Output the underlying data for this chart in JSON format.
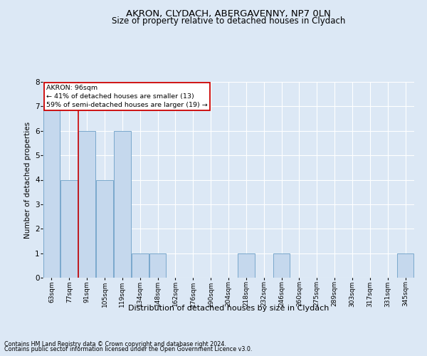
{
  "title_line1": "AKRON, CLYDACH, ABERGAVENNY, NP7 0LN",
  "title_line2": "Size of property relative to detached houses in Clydach",
  "xlabel": "Distribution of detached houses by size in Clydach",
  "ylabel": "Number of detached properties",
  "footer_line1": "Contains HM Land Registry data © Crown copyright and database right 2024.",
  "footer_line2": "Contains public sector information licensed under the Open Government Licence v3.0.",
  "annotation_title": "AKRON: 96sqm",
  "annotation_line1": "← 41% of detached houses are smaller (13)",
  "annotation_line2": "59% of semi-detached houses are larger (19) →",
  "categories": [
    "63sqm",
    "77sqm",
    "91sqm",
    "105sqm",
    "119sqm",
    "134sqm",
    "148sqm",
    "162sqm",
    "176sqm",
    "190sqm",
    "204sqm",
    "218sqm",
    "232sqm",
    "246sqm",
    "260sqm",
    "275sqm",
    "289sqm",
    "303sqm",
    "317sqm",
    "331sqm",
    "345sqm"
  ],
  "values": [
    7,
    4,
    6,
    4,
    6,
    1,
    1,
    0,
    0,
    0,
    0,
    1,
    0,
    1,
    0,
    0,
    0,
    0,
    0,
    0,
    1
  ],
  "bar_color": "#c5d8ed",
  "bar_edge_color": "#7aa8cc",
  "red_line_index": 2,
  "red_line_color": "#cc0000",
  "annotation_box_color": "#ffffff",
  "annotation_box_edge": "#cc0000",
  "ylim": [
    0,
    8
  ],
  "yticks": [
    0,
    1,
    2,
    3,
    4,
    5,
    6,
    7,
    8
  ],
  "background_color": "#dce8f5",
  "axes_background": "#dce8f5",
  "grid_color": "#ffffff",
  "title_fontsize": 9.5,
  "subtitle_fontsize": 8.5
}
